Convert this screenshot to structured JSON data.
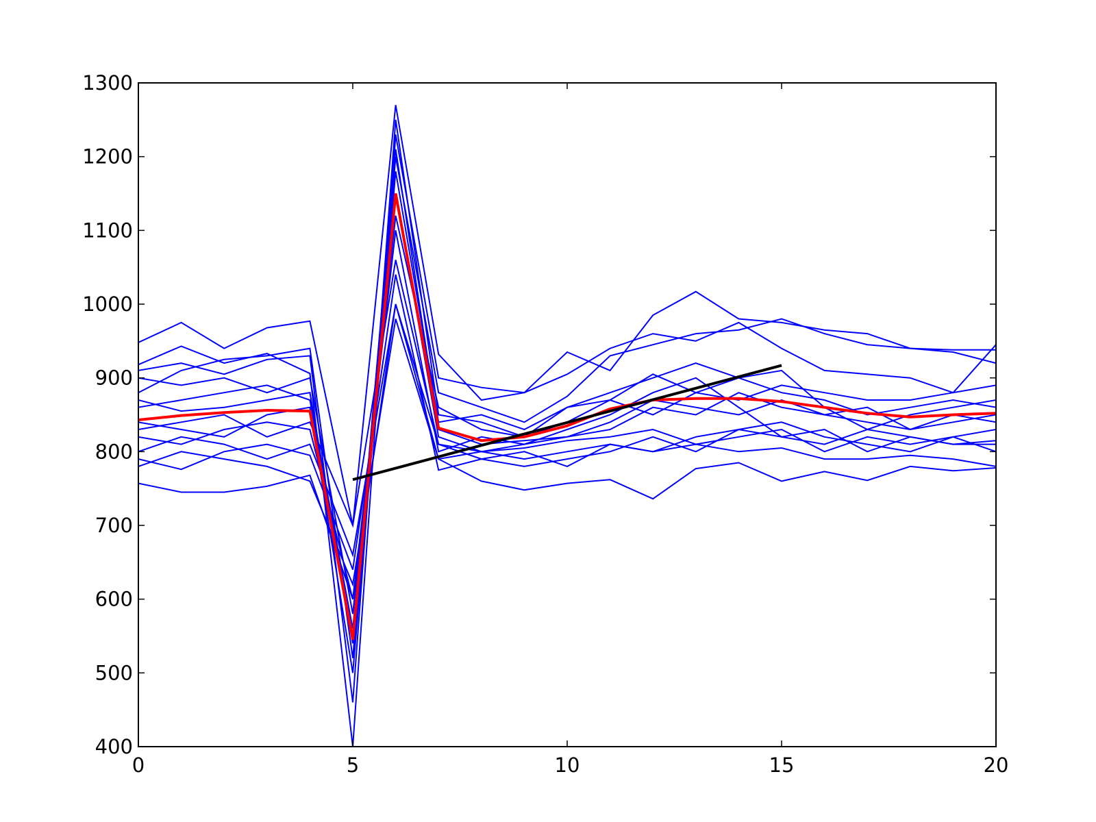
{
  "chart_data": {
    "type": "line",
    "x": [
      0,
      1,
      2,
      3,
      4,
      5,
      6,
      7,
      8,
      9,
      10,
      11,
      12,
      13,
      14,
      15,
      16,
      17,
      18,
      19,
      20
    ],
    "xlim": [
      0,
      20
    ],
    "xticks": [
      0,
      5,
      10,
      15,
      20
    ],
    "ylim": [
      400,
      1300
    ],
    "yticks": [
      400,
      500,
      600,
      700,
      800,
      900,
      1000,
      1100,
      1200,
      1300
    ],
    "grid": false,
    "series": [
      {
        "color": "#0000ff",
        "values": [
          948,
          975,
          940,
          968,
          977,
          700,
          1270,
          932,
          870,
          880,
          935,
          910,
          985,
          1017,
          980,
          975,
          965,
          960,
          940,
          938,
          938
        ]
      },
      {
        "color": "#0000ff",
        "values": [
          757,
          745,
          745,
          753,
          768,
          600,
          1000,
          790,
          760,
          748,
          757,
          762,
          736,
          777,
          785,
          760,
          773,
          761,
          780,
          774,
          778
        ]
      },
      {
        "color": "#0000ff",
        "values": [
          918,
          943,
          920,
          933,
          906,
          400,
          1230,
          900,
          887,
          880,
          905,
          940,
          960,
          950,
          975,
          940,
          910,
          905,
          900,
          880,
          945
        ]
      },
      {
        "color": "#0000ff",
        "values": [
          880,
          910,
          925,
          930,
          940,
          520,
          1200,
          880,
          860,
          840,
          875,
          930,
          945,
          960,
          965,
          980,
          960,
          945,
          940,
          935,
          920
        ]
      },
      {
        "color": "#0000ff",
        "values": [
          790,
          776,
          800,
          810,
          795,
          640,
          1040,
          775,
          790,
          800,
          780,
          810,
          800,
          810,
          800,
          805,
          790,
          790,
          795,
          790,
          780
        ]
      },
      {
        "color": "#0000ff",
        "values": [
          820,
          810,
          830,
          840,
          830,
          600,
          1100,
          800,
          820,
          810,
          830,
          850,
          880,
          900,
          860,
          820,
          830,
          800,
          820,
          810,
          815
        ]
      },
      {
        "color": "#0000ff",
        "values": [
          860,
          870,
          880,
          890,
          870,
          560,
          1150,
          820,
          800,
          810,
          820,
          840,
          870,
          860,
          850,
          870,
          850,
          860,
          830,
          840,
          850
        ]
      },
      {
        "color": "#0000ff",
        "values": [
          840,
          830,
          820,
          850,
          860,
          500,
          1180,
          840,
          850,
          830,
          860,
          880,
          900,
          920,
          900,
          880,
          870,
          850,
          860,
          870,
          860
        ]
      },
      {
        "color": "#0000ff",
        "values": [
          800,
          820,
          810,
          790,
          810,
          660,
          1000,
          810,
          790,
          780,
          790,
          800,
          820,
          800,
          830,
          840,
          820,
          810,
          800,
          820,
          830
        ]
      },
      {
        "color": "#0000ff",
        "values": [
          900,
          890,
          900,
          880,
          900,
          580,
          1120,
          860,
          830,
          820,
          840,
          870,
          850,
          880,
          870,
          890,
          880,
          870,
          870,
          880,
          890
        ]
      },
      {
        "color": "#0000ff",
        "values": [
          870,
          855,
          860,
          870,
          880,
          540,
          1210,
          830,
          810,
          815,
          820,
          830,
          860,
          850,
          880,
          860,
          850,
          840,
          830,
          850,
          840
        ]
      },
      {
        "color": "#0000ff",
        "values": [
          780,
          800,
          790,
          780,
          760,
          620,
          980,
          790,
          800,
          790,
          800,
          810,
          800,
          820,
          830,
          820,
          810,
          830,
          820,
          810,
          810
        ]
      },
      {
        "color": "#0000ff",
        "values": [
          910,
          920,
          905,
          925,
          930,
          460,
          1250,
          850,
          840,
          820,
          860,
          870,
          905,
          880,
          900,
          910,
          860,
          830,
          850,
          860,
          870
        ]
      },
      {
        "color": "#0000ff",
        "values": [
          830,
          840,
          850,
          820,
          840,
          700,
          1060,
          810,
          800,
          805,
          815,
          820,
          830,
          810,
          820,
          830,
          800,
          820,
          810,
          820,
          800
        ]
      },
      {
        "color": "#ff0000",
        "width": 4,
        "values": [
          843,
          849,
          853,
          856,
          855,
          545,
          1150,
          832,
          815,
          820,
          835,
          858,
          870,
          872,
          872,
          868,
          860,
          852,
          847,
          850,
          852
        ]
      },
      {
        "color": "#000000",
        "width": 4,
        "x": [
          5,
          15
        ],
        "values": [
          762,
          917
        ]
      }
    ]
  }
}
